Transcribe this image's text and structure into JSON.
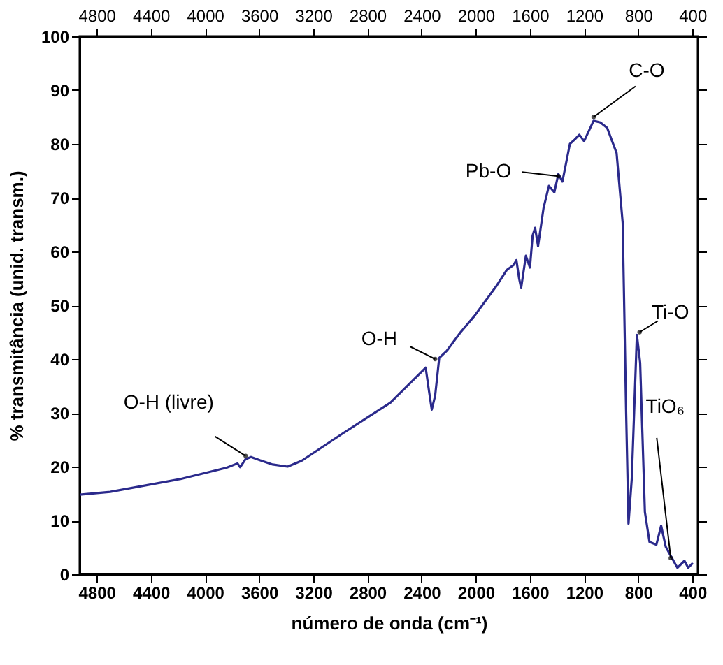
{
  "chart_data": {
    "type": "line",
    "xlabel": "número de onda (cm⁻¹)",
    "ylabel": "% transmitância (unid. transm.)",
    "x": [
      4925,
      4700,
      4180,
      3840,
      3760,
      3740,
      3700,
      3660,
      3595,
      3500,
      3390,
      3285,
      2975,
      2630,
      2370,
      2345,
      2325,
      2300,
      2270,
      2215,
      2115,
      2010,
      1850,
      1770,
      1720,
      1700,
      1680,
      1665,
      1630,
      1600,
      1580,
      1562,
      1540,
      1500,
      1460,
      1420,
      1390,
      1360,
      1305,
      1270,
      1235,
      1200,
      1130,
      1080,
      1030,
      960,
      915,
      890,
      872,
      848,
      810,
      786,
      751,
      717,
      666,
      631,
      597,
      511,
      459,
      431,
      397
    ],
    "values": [
      14.8,
      15.3,
      17.7,
      19.8,
      20.6,
      19.9,
      21.4,
      21.8,
      21.2,
      20.4,
      20.0,
      21.1,
      26.3,
      31.9,
      38.4,
      34,
      30.6,
      33.2,
      40.2,
      41.5,
      44.9,
      48.0,
      53.5,
      56.6,
      57.5,
      58.4,
      55,
      53.2,
      59.2,
      57,
      63,
      64.4,
      61,
      68,
      72.2,
      71,
      74.4,
      73,
      80.0,
      80.8,
      81.7,
      80.5,
      84.3,
      84,
      83.0,
      78.3,
      65.3,
      30.6,
      9.4,
      17.7,
      44.5,
      39.3,
      11.6,
      6.0,
      5.5,
      9.0,
      5.1,
      1.2,
      2.5,
      1.2,
      2.1
    ],
    "color": "#2b2a8c",
    "xlim": [
      4925,
      360
    ],
    "xticks": [
      4800,
      4400,
      4000,
      3600,
      3200,
      2800,
      2400,
      2000,
      1600,
      1200,
      800,
      400
    ],
    "x2lim": [
      4925,
      360
    ],
    "x2ticks": [
      4800,
      4400,
      4000,
      3600,
      3200,
      2800,
      2400,
      2000,
      1600,
      1200,
      800,
      400
    ],
    "ylim": [
      0,
      100
    ],
    "yticks": [
      0,
      10,
      20,
      30,
      40,
      50,
      60,
      70,
      80,
      90,
      100
    ],
    "annotations": [
      {
        "text": "O-H (livre)",
        "x": 3700,
        "y": 22
      },
      {
        "text": "O-H",
        "x": 2300,
        "y": 40
      },
      {
        "text": "Pb-O",
        "x": 1390,
        "y": 74
      },
      {
        "text": "C-O",
        "x": 1130,
        "y": 85
      },
      {
        "text": "Ti-O",
        "x": 790,
        "y": 45
      },
      {
        "text": "TiO₆",
        "x": 560,
        "y": 3
      }
    ]
  }
}
